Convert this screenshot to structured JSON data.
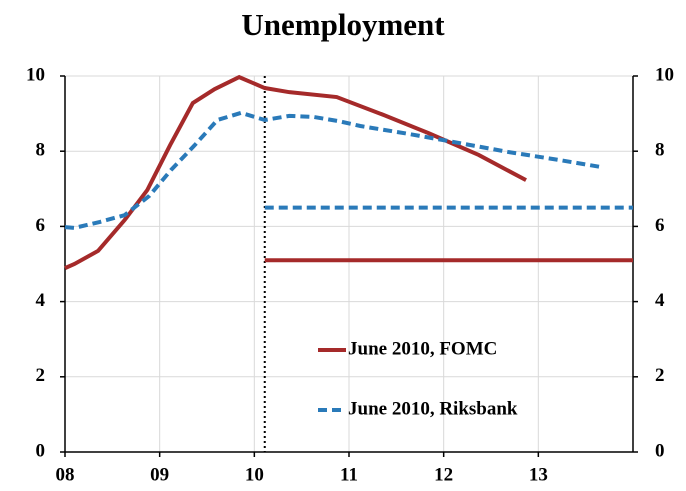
{
  "chart_data": {
    "type": "line",
    "title": "Unemployment",
    "xlim": [
      8,
      14
    ],
    "xticks": [
      {
        "value": 8,
        "label": "08"
      },
      {
        "value": 9,
        "label": "09"
      },
      {
        "value": 10,
        "label": "10"
      },
      {
        "value": 11,
        "label": "11"
      },
      {
        "value": 12,
        "label": "12"
      },
      {
        "value": 13,
        "label": "13"
      }
    ],
    "ylim": [
      0,
      10
    ],
    "yticks": [
      0,
      2,
      4,
      6,
      8,
      10
    ],
    "y2lim": [
      0,
      10
    ],
    "y2ticks": [
      0,
      2,
      4,
      6,
      8,
      10
    ],
    "grid": true,
    "legend": "lower right",
    "vline": 10.11,
    "series": [
      {
        "name": "June 2010, FOMC",
        "color": "#a52a2a",
        "dashed": false,
        "x": [
          8,
          8.1,
          8.35,
          8.63,
          8.87,
          9.11,
          9.35,
          9.58,
          9.84,
          10.11,
          10.37,
          10.87,
          11.37,
          11.84,
          12.37,
          12.87
        ],
        "values": [
          4.89,
          5.0,
          5.35,
          6.17,
          6.97,
          8.16,
          9.28,
          9.65,
          9.97,
          9.68,
          9.57,
          9.44,
          8.96,
          8.48,
          7.9,
          7.23
        ]
      },
      {
        "name": "June 2010, Riksbank",
        "color": "#2a7ab9",
        "dashed": true,
        "x": [
          8,
          8.1,
          8.37,
          8.63,
          8.89,
          9.12,
          9.37,
          9.61,
          9.86,
          10.11,
          10.37,
          10.63,
          10.89,
          11.12,
          11.63,
          12.16,
          12.68,
          13.21,
          13.66
        ],
        "values": [
          5.98,
          5.96,
          6.12,
          6.3,
          6.81,
          7.5,
          8.16,
          8.83,
          9.02,
          8.83,
          8.94,
          8.91,
          8.8,
          8.67,
          8.46,
          8.22,
          7.98,
          7.77,
          7.58
        ]
      }
    ],
    "longer_run": [
      {
        "color": "#a52a2a",
        "dashed": false,
        "x": [
          10.11,
          14
        ],
        "values": [
          5.1,
          5.1
        ]
      },
      {
        "color": "#2a7ab9",
        "dashed": true,
        "x": [
          10.11,
          14
        ],
        "values": [
          6.5,
          6.5
        ]
      }
    ]
  }
}
